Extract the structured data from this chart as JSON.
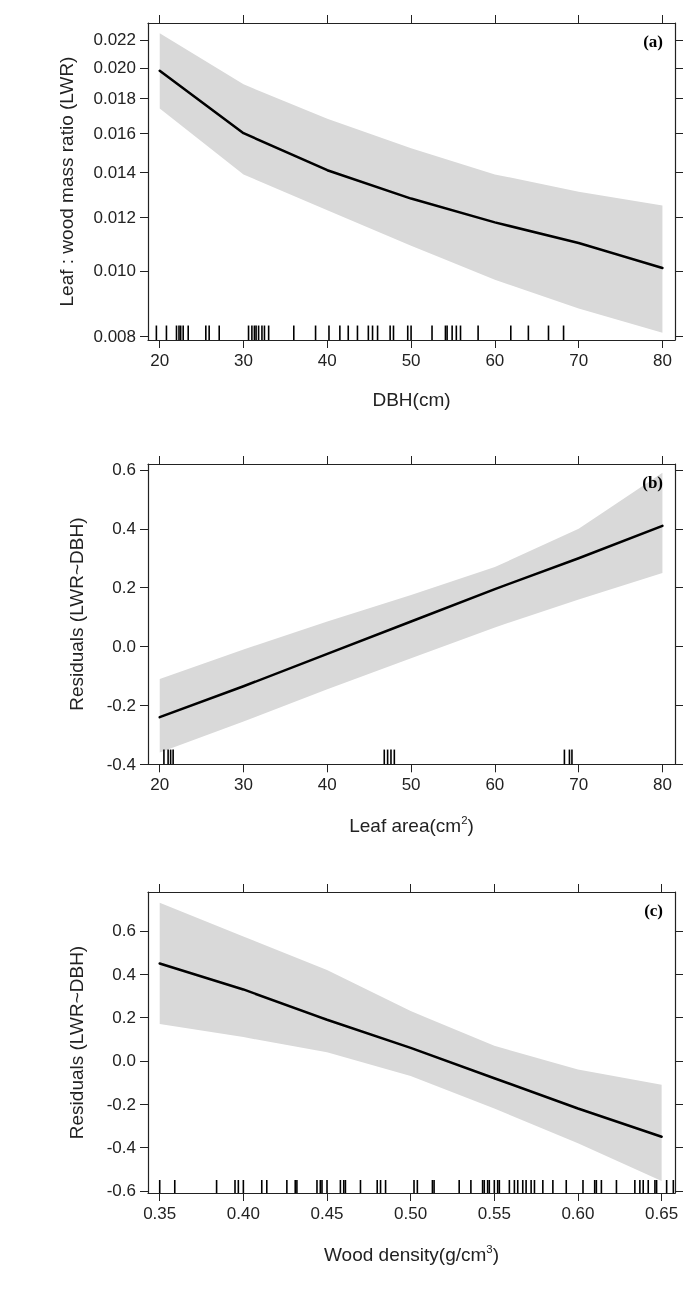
{
  "chart_data": [
    {
      "type": "line",
      "annotations": [
        "(a)"
      ],
      "xlabel": "DBH(cm)",
      "ylabel": "Leaf : wood mass ratio (LWR)",
      "log": "y",
      "xlim": [
        18.6,
        81.5
      ],
      "ylim": [
        0.0079,
        0.0233
      ],
      "xticks": [
        20,
        30,
        40,
        50,
        60,
        70,
        80
      ],
      "yticks": [
        0.008,
        {
          "value": 0.01,
          "label": "0.010"
        },
        0.012,
        0.014,
        0.016,
        0.018,
        {
          "value": 0.02,
          "label": "0.020"
        },
        0.022
      ],
      "series": [
        {
          "color": "#000000",
          "x": [
            20,
            30,
            40,
            50,
            60,
            70,
            80
          ],
          "values": [
            0.0198,
            0.016,
            0.0141,
            0.0128,
            0.0118,
            0.011,
            0.0101
          ],
          "lower": [
            0.0174,
            0.0139,
            0.0123,
            0.0109,
            0.0097,
            0.0088,
            0.0081
          ],
          "upper": [
            0.0225,
            0.0189,
            0.0168,
            0.0152,
            0.0139,
            0.0131,
            0.0125
          ]
        },
        {
          "type": "bar",
          "color": "#000000",
          "base": [
            0.0079,
            0.0079,
            0.0079,
            0.0079,
            0.0079,
            0.0079,
            0.0079,
            0.0079,
            0.0079,
            0.0079,
            0.0079,
            0.0079,
            0.0079,
            0.0079,
            0.0079,
            0.0079,
            0.0079,
            0.0079,
            0.0079,
            0.0079,
            0.0079,
            0.0079,
            0.0079,
            0.0079,
            0.0079,
            0.0079,
            0.0079,
            0.0079,
            0.0079,
            0.0079,
            0.0079,
            0.0079,
            0.0079,
            0.0079,
            0.0079,
            0.0079,
            0.0079,
            0.0079,
            0.0079,
            0.0079,
            0.0079,
            0.0079
          ],
          "x": [
            19.6,
            20.8,
            22.0,
            22.3,
            22.5,
            22.8,
            23.4,
            25.5,
            25.9,
            27.1,
            30.6,
            31.0,
            31.3,
            31.5,
            31.8,
            32.2,
            32.5,
            33.0,
            36.0,
            38.6,
            40.2,
            41.5,
            42.5,
            43.6,
            44.9,
            45.4,
            46.0,
            47.5,
            47.9,
            49.6,
            50.0,
            52.5,
            54.1,
            54.3,
            54.9,
            55.4,
            55.9,
            58.0,
            61.9,
            64.0,
            66.4,
            68.2
          ],
          "values": [
            0.0004,
            0.0004,
            0.0004,
            0.0004,
            0.0004,
            0.0004,
            0.0004,
            0.0004,
            0.0004,
            0.0004,
            0.0004,
            0.0004,
            0.0004,
            0.0004,
            0.0004,
            0.0004,
            0.0004,
            0.0004,
            0.0004,
            0.0004,
            0.0004,
            0.0004,
            0.0004,
            0.0004,
            0.0004,
            0.0004,
            0.0004,
            0.0004,
            0.0004,
            0.0004,
            0.0004,
            0.0004,
            0.0004,
            0.0004,
            0.0004,
            0.0004,
            0.0004,
            0.0004,
            0.0004,
            0.0004,
            0.0004,
            0.0004
          ]
        }
      ]
    },
    {
      "type": "line",
      "annotations": [
        "(b)"
      ],
      "xlabel": "Leaf area(cm$^{2}$)",
      "ylabel": "Residuals (LWR~DBH)",
      "xlim": [
        18.6,
        81.5
      ],
      "ylim": [
        -0.4,
        0.62
      ],
      "xticks": [
        20,
        30,
        40,
        50,
        60,
        70,
        80
      ],
      "yticks": [
        -0.4,
        -0.2,
        {
          "value": 0,
          "label": "0.0"
        },
        0.2,
        0.4,
        0.6
      ],
      "series": [
        {
          "color": "#000000",
          "x": [
            20,
            30,
            40,
            50,
            60,
            70,
            80
          ],
          "values": [
            -0.24,
            -0.135,
            -0.025,
            0.085,
            0.195,
            0.3,
            0.41
          ],
          "lower": [
            -0.36,
            -0.255,
            -0.145,
            -0.04,
            0.065,
            0.16,
            0.25
          ],
          "upper": [
            -0.11,
            -0.01,
            0.085,
            0.175,
            0.27,
            0.4,
            0.59
          ]
        },
        {
          "type": "bar",
          "color": "#000000",
          "base": [
            -0.4,
            -0.4,
            -0.4,
            -0.4,
            -0.4,
            -0.4,
            -0.4,
            -0.4,
            -0.4,
            -0.4,
            -0.4
          ],
          "x": [
            20.5,
            21.0,
            21.3,
            21.6,
            46.8,
            47.2,
            47.6,
            48.0,
            68.3,
            68.9,
            69.2
          ],
          "values": [
            0.05,
            0.05,
            0.05,
            0.05,
            0.05,
            0.05,
            0.05,
            0.05,
            0.05,
            0.05,
            0.05
          ]
        }
      ]
    },
    {
      "type": "line",
      "annotations": [
        "(c)"
      ],
      "xlabel": "Wood density(g/cm$^{3}$)",
      "ylabel": "Residuals (LWR~DBH)",
      "xlim": [
        0.343,
        0.658
      ],
      "ylim": [
        -0.61,
        0.78
      ],
      "xticks": [
        0.35,
        {
          "value": 0.4,
          "label": "0.40"
        },
        0.45,
        {
          "value": 0.5,
          "label": "0.50"
        },
        0.55,
        {
          "value": 0.6,
          "label": "0.60"
        },
        0.65
      ],
      "yticks": [
        -0.6,
        -0.4,
        -0.2,
        {
          "value": 0,
          "label": "0.0"
        },
        0.2,
        0.4,
        0.6
      ],
      "series": [
        {
          "color": "#000000",
          "x": [
            0.35,
            0.4,
            0.45,
            0.5,
            0.55,
            0.6,
            0.65
          ],
          "values": [
            0.45,
            0.33,
            0.19,
            0.06,
            -0.08,
            -0.22,
            -0.35
          ],
          "lower": [
            0.17,
            0.11,
            0.04,
            -0.07,
            -0.22,
            -0.38,
            -0.555
          ],
          "upper": [
            0.73,
            0.575,
            0.42,
            0.23,
            0.07,
            -0.04,
            -0.11
          ]
        },
        {
          "type": "bar",
          "color": "#000000",
          "base": [
            -0.61,
            -0.61,
            -0.61,
            -0.61,
            -0.61,
            -0.61,
            -0.61,
            -0.61,
            -0.61,
            -0.61,
            -0.61,
            -0.61,
            -0.61,
            -0.61,
            -0.61,
            -0.61,
            -0.61,
            -0.61,
            -0.61,
            -0.61,
            -0.61,
            -0.61,
            -0.61,
            -0.61,
            -0.61,
            -0.61,
            -0.61,
            -0.61,
            -0.61,
            -0.61,
            -0.61,
            -0.61,
            -0.61,
            -0.61,
            -0.61,
            -0.61,
            -0.61,
            -0.61,
            -0.61,
            -0.61,
            -0.61,
            -0.61,
            -0.61,
            -0.61,
            -0.61,
            -0.61,
            -0.61,
            -0.61,
            -0.61,
            -0.61,
            -0.61,
            -0.61,
            -0.61,
            -0.61,
            -0.61,
            -0.61,
            -0.61,
            -0.61
          ],
          "x": [
            0.35,
            0.359,
            0.384,
            0.395,
            0.397,
            0.4,
            0.411,
            0.414,
            0.426,
            0.431,
            0.432,
            0.444,
            0.446,
            0.447,
            0.45,
            0.458,
            0.46,
            0.461,
            0.47,
            0.48,
            0.482,
            0.485,
            0.502,
            0.504,
            0.513,
            0.514,
            0.529,
            0.536,
            0.543,
            0.544,
            0.546,
            0.547,
            0.55,
            0.552,
            0.553,
            0.559,
            0.562,
            0.564,
            0.567,
            0.569,
            0.572,
            0.574,
            0.579,
            0.585,
            0.593,
            0.603,
            0.61,
            0.611,
            0.614,
            0.623,
            0.634,
            0.637,
            0.639,
            0.642,
            0.646,
            0.647,
            0.653,
            0.657
          ],
          "values": [
            0.06,
            0.06,
            0.06,
            0.06,
            0.06,
            0.06,
            0.06,
            0.06,
            0.06,
            0.06,
            0.06,
            0.06,
            0.06,
            0.06,
            0.06,
            0.06,
            0.06,
            0.06,
            0.06,
            0.06,
            0.06,
            0.06,
            0.06,
            0.06,
            0.06,
            0.06,
            0.06,
            0.06,
            0.06,
            0.06,
            0.06,
            0.06,
            0.06,
            0.06,
            0.06,
            0.06,
            0.06,
            0.06,
            0.06,
            0.06,
            0.06,
            0.06,
            0.06,
            0.06,
            0.06,
            0.06,
            0.06,
            0.06,
            0.06,
            0.06,
            0.06,
            0.06,
            0.06,
            0.06,
            0.06,
            0.06,
            0.06,
            0.06
          ]
        }
      ]
    }
  ]
}
